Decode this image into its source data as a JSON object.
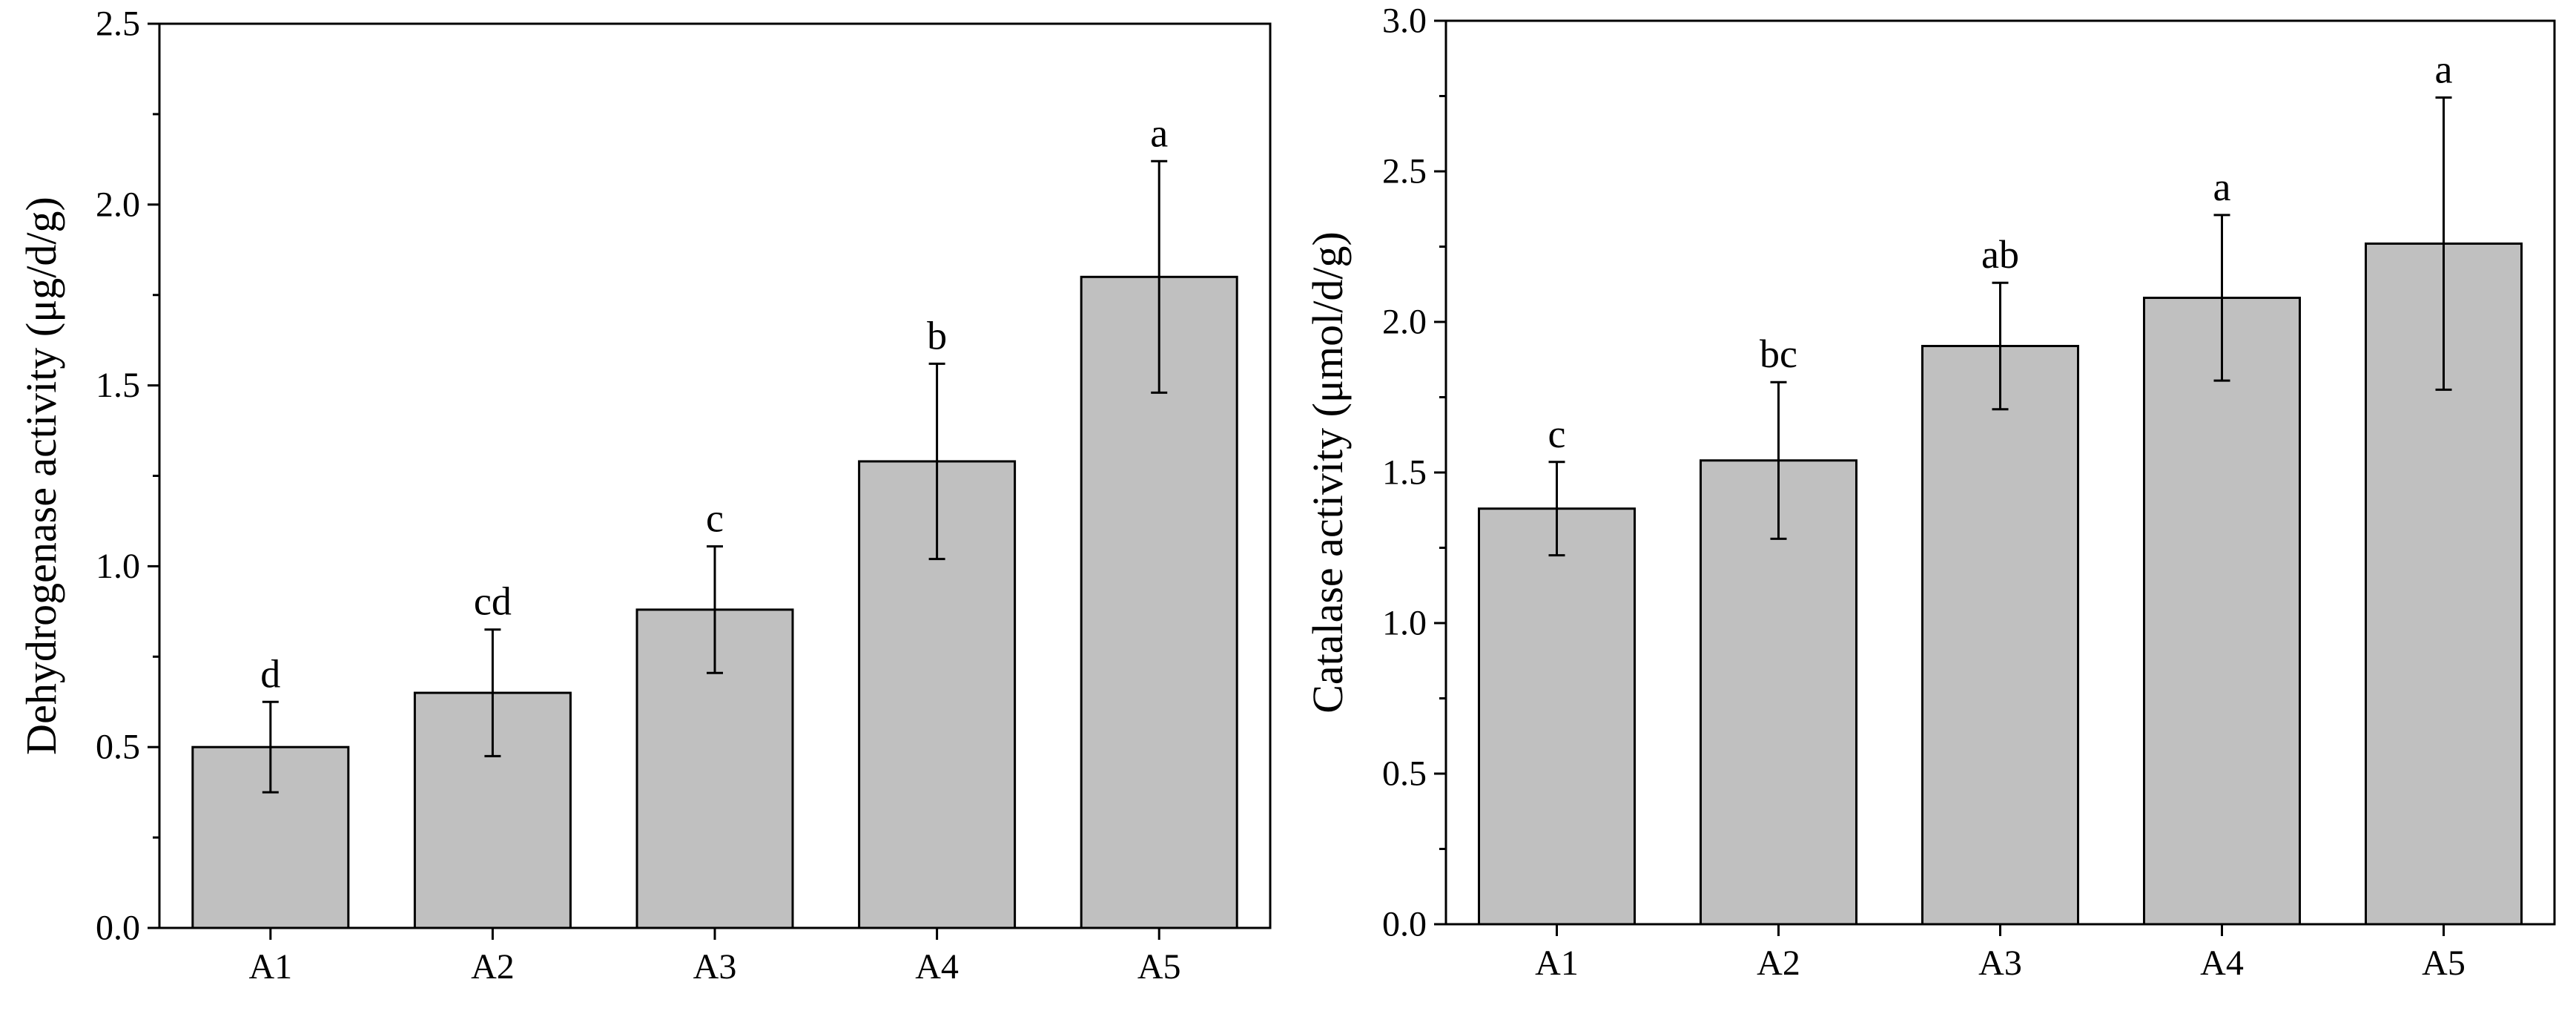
{
  "chart_data": [
    {
      "type": "bar",
      "title": "",
      "xlabel": "",
      "ylabel": "Dehydrogenase activity (μg/d/g)",
      "ylim": [
        0,
        2.5
      ],
      "yticks": [
        0.0,
        0.5,
        1.0,
        1.5,
        2.0,
        2.5
      ],
      "ytick_labels": [
        "0.0",
        "0.5",
        "1.0",
        "1.5",
        "2.0",
        "2.5"
      ],
      "categories": [
        "A1",
        "A2",
        "A3",
        "A4",
        "A5"
      ],
      "values": [
        0.5,
        0.65,
        0.88,
        1.29,
        1.8
      ],
      "errors": [
        0.125,
        0.175,
        0.175,
        0.27,
        0.32
      ],
      "letters": [
        "d",
        "cd",
        "c",
        "b",
        "a"
      ]
    },
    {
      "type": "bar",
      "title": "",
      "xlabel": "",
      "ylabel": "Catalase activity (μmol/d/g)",
      "ylim": [
        0,
        3.0
      ],
      "yticks": [
        0.0,
        0.5,
        1.0,
        1.5,
        2.0,
        2.5,
        3.0
      ],
      "ytick_labels": [
        "0.0",
        "0.5",
        "1.0",
        "1.5",
        "2.0",
        "2.5",
        "3.0"
      ],
      "categories": [
        "A1",
        "A2",
        "A3",
        "A4",
        "A5"
      ],
      "values": [
        1.38,
        1.54,
        1.92,
        2.08,
        2.26
      ],
      "errors": [
        0.155,
        0.26,
        0.21,
        0.275,
        0.485
      ],
      "letters": [
        "c",
        "bc",
        "ab",
        "a",
        "a"
      ]
    }
  ]
}
